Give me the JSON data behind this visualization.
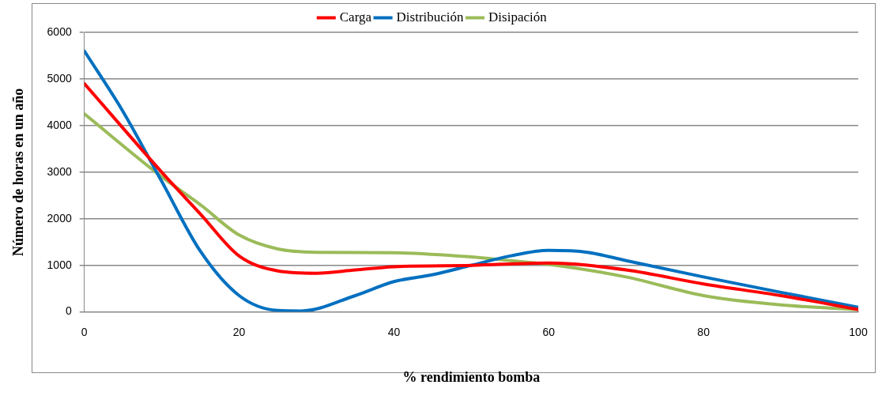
{
  "chart_data": {
    "type": "line",
    "xlabel": "% rendimiento bomba",
    "ylabel": "Número de horas en un año",
    "xlim": [
      0,
      100
    ],
    "xticks": [
      0,
      20,
      40,
      60,
      80,
      100
    ],
    "ylim": [
      0,
      6000
    ],
    "yticks": [
      0,
      1000,
      2000,
      3000,
      4000,
      5000,
      6000
    ],
    "grid": "y",
    "legend": "top",
    "marker": "none",
    "line_style": "solid",
    "series": [
      {
        "name": "Carga",
        "color": "#ff0000",
        "x": [
          0,
          10,
          15,
          20,
          25,
          30,
          35,
          40,
          50,
          60,
          70,
          80,
          90,
          100
        ],
        "values": [
          4900,
          3000,
          2100,
          1200,
          880,
          830,
          900,
          970,
          1000,
          1050,
          900,
          600,
          350,
          50
        ]
      },
      {
        "name": "Distribución",
        "color": "#0070c0",
        "x": [
          0,
          5,
          10,
          15,
          20,
          25,
          28,
          35,
          40,
          45,
          50,
          55,
          60,
          65,
          70,
          80,
          90,
          100
        ],
        "values": [
          5600,
          4300,
          2800,
          1300,
          350,
          30,
          20,
          350,
          650,
          800,
          1000,
          1200,
          1320,
          1280,
          1100,
          750,
          420,
          100
        ]
      },
      {
        "name": "Disipación",
        "color": "#9bbb59",
        "x": [
          0,
          10,
          15,
          20,
          25,
          30,
          40,
          50,
          55,
          60,
          70,
          80,
          90,
          100
        ],
        "values": [
          4250,
          2900,
          2300,
          1650,
          1350,
          1280,
          1270,
          1180,
          1100,
          1020,
          750,
          350,
          150,
          50
        ]
      }
    ]
  }
}
